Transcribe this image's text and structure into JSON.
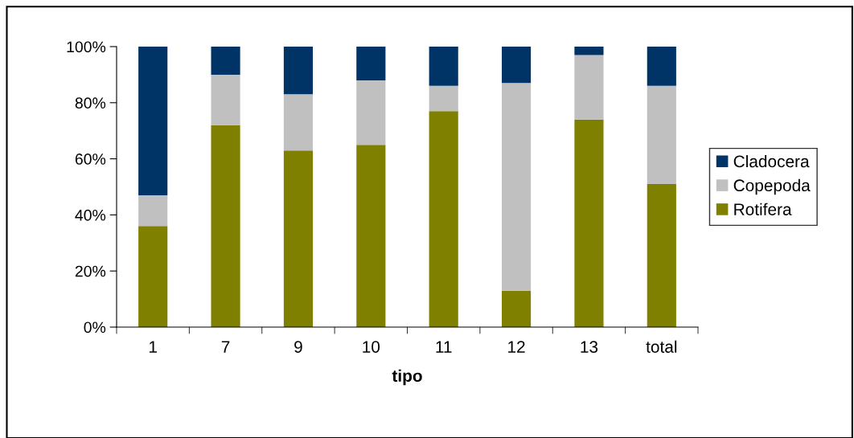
{
  "chart_data": {
    "type": "bar",
    "stacked": true,
    "xlabel": "tipo",
    "categories": [
      "1",
      "7",
      "9",
      "10",
      "11",
      "12",
      "13",
      "total"
    ],
    "series": [
      {
        "name": "Rotifera",
        "color": "#808000",
        "values": [
          36,
          72,
          63,
          65,
          77,
          13,
          74,
          51
        ]
      },
      {
        "name": "Copepoda",
        "color": "#c0c0c0",
        "values": [
          11,
          18,
          20,
          23,
          9,
          74,
          23,
          35
        ]
      },
      {
        "name": "Cladocera",
        "color": "#003366",
        "values": [
          53,
          10,
          17,
          12,
          14,
          13,
          3,
          14
        ]
      }
    ],
    "ylim": [
      0,
      100
    ],
    "yticks": [
      {
        "value": 0,
        "label": "0%"
      },
      {
        "value": 20,
        "label": "20%"
      },
      {
        "value": 40,
        "label": "40%"
      },
      {
        "value": 60,
        "label": "60%"
      },
      {
        "value": 80,
        "label": "80%"
      },
      {
        "value": 100,
        "label": "100%"
      }
    ],
    "grid": false,
    "legend": "right"
  }
}
